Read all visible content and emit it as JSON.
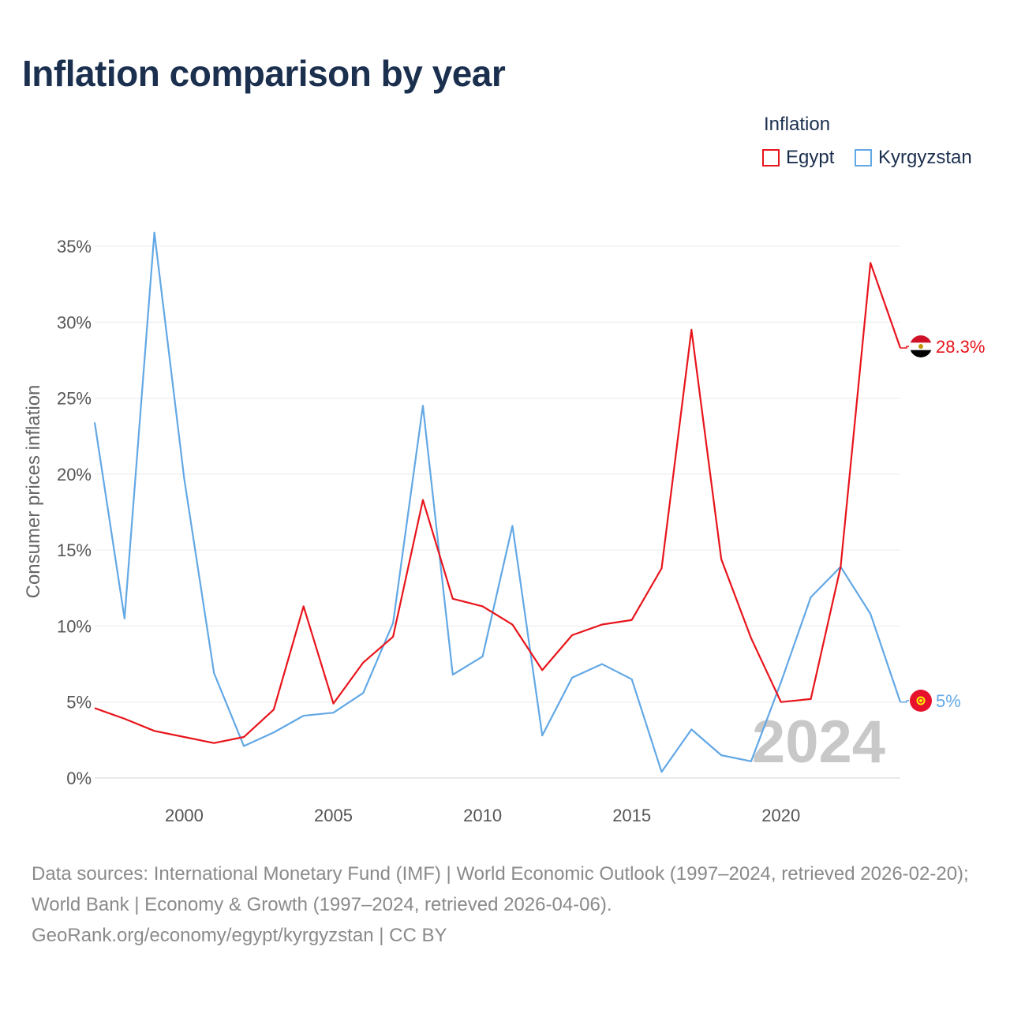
{
  "title": "Inflation comparison by year",
  "legend": {
    "title": "Inflation",
    "items": [
      {
        "name": "Egypt",
        "color": "#e8141b"
      },
      {
        "name": "Kyrgyzstan",
        "color": "#62a8e5"
      }
    ]
  },
  "chart_data": {
    "type": "line",
    "title": "Inflation comparison by year",
    "xlabel": "",
    "ylabel": "Consumer prices inflation",
    "xlim": [
      1997,
      2024
    ],
    "ylim": [
      0,
      35
    ],
    "x_ticks": [
      2000,
      2005,
      2010,
      2015,
      2020
    ],
    "y_ticks": [
      0,
      5,
      10,
      15,
      20,
      25,
      30,
      35
    ],
    "y_tick_labels": [
      "0%",
      "5%",
      "10%",
      "15%",
      "20%",
      "25%",
      "30%",
      "35%"
    ],
    "grid": true,
    "legend_position": "top-right",
    "watermark_year": "2024",
    "x": [
      1997,
      1998,
      1999,
      2000,
      2001,
      2002,
      2003,
      2004,
      2005,
      2006,
      2007,
      2008,
      2009,
      2010,
      2011,
      2012,
      2013,
      2014,
      2015,
      2016,
      2017,
      2018,
      2019,
      2020,
      2021,
      2022,
      2023,
      2024
    ],
    "series": [
      {
        "name": "Egypt",
        "color": "#e8141b",
        "end_label": "28.3%",
        "values": [
          4.6,
          3.9,
          3.1,
          2.7,
          2.3,
          2.7,
          4.5,
          11.3,
          4.9,
          7.6,
          9.3,
          18.3,
          11.8,
          11.3,
          10.1,
          7.1,
          9.4,
          10.1,
          10.4,
          13.8,
          29.5,
          14.4,
          9.2,
          5.0,
          5.2,
          13.9,
          33.9,
          28.3
        ]
      },
      {
        "name": "Kyrgyzstan",
        "color": "#62a8e5",
        "end_label": "5%",
        "values": [
          23.4,
          10.5,
          35.9,
          19.7,
          6.9,
          2.1,
          3.0,
          4.1,
          4.3,
          5.6,
          10.2,
          24.5,
          6.8,
          8.0,
          16.6,
          2.8,
          6.6,
          7.5,
          6.5,
          0.4,
          3.2,
          1.5,
          1.1,
          6.3,
          11.9,
          13.9,
          10.8,
          5.0
        ]
      }
    ]
  },
  "footer": {
    "line1": "Data sources: International Monetary Fund (IMF) | World Economic Outlook (1997–2024, retrieved 2026-02-20); World Bank | Economy & Growth (1997–2024, retrieved 2026-04-06).",
    "line2": "GeoRank.org/economy/egypt/kyrgyzstan | CC BY"
  }
}
